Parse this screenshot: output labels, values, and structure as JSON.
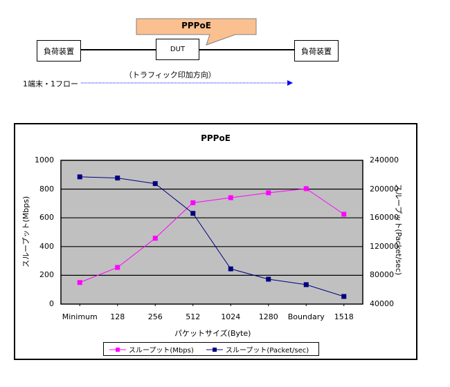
{
  "diagram": {
    "callout_label": "PPPoE",
    "left_device_label": "負荷装置",
    "dut_label": "DUT",
    "right_device_label": "負荷装置",
    "flow_direction_label": "（トラフィック印加方向）",
    "flow_type_label": "1端末・1フロー",
    "callout_color": "#FAC090",
    "arrow_color": "#0000FF"
  },
  "legend": {
    "items": [
      {
        "label": "スループット(Mbps)",
        "color": "#FF00FF"
      },
      {
        "label": "スループット(Packet/sec)",
        "color": "#000080"
      }
    ]
  },
  "chart_data": {
    "type": "line",
    "title": "PPPoE",
    "xlabel": "パケットサイズ(Byte)",
    "ylabel": "スループット(Mbps)",
    "y2label": "スループット(Packet/sec)",
    "categories": [
      "Minimum",
      "128",
      "256",
      "512",
      "1024",
      "1280",
      "Boundary",
      "1518"
    ],
    "ylim": [
      0,
      1000
    ],
    "yticks": [
      "0",
      "200",
      "400",
      "600",
      "800",
      "1000"
    ],
    "y2lim": [
      40000,
      240000
    ],
    "y2ticks": [
      "40000",
      "80000",
      "120000",
      "160000",
      "200000",
      "240000"
    ],
    "grid": true,
    "plot_background": "#C0C0C0",
    "legend_position": "bottom",
    "series": [
      {
        "name": "スループット(Mbps)",
        "axis": "left",
        "color": "#FF00FF",
        "values": [
          150,
          255,
          458,
          705,
          740,
          774,
          803,
          625
        ]
      },
      {
        "name": "スループット(Packet/sec)",
        "axis": "right",
        "color": "#000080",
        "values": [
          217000,
          215400,
          207600,
          166200,
          89000,
          74600,
          67000,
          50600
        ]
      }
    ]
  }
}
